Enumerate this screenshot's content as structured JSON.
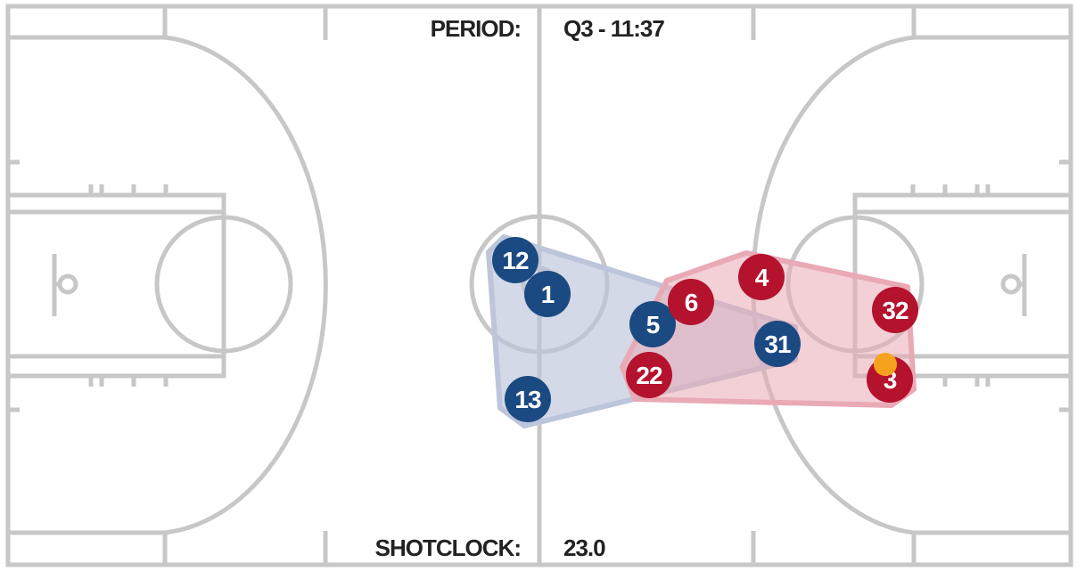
{
  "readouts": {
    "period_label": "PERIOD:",
    "period_value": "Q3 - 11:37",
    "shotclock_label": "SHOTCLOCK:",
    "shotclock_value": "23.0"
  },
  "colors": {
    "court_lines": "#c7c7c7",
    "home_team": "#1b4a82",
    "away_team": "#b5122e",
    "home_hull": "#bcc5da",
    "away_hull": "#e9a9b5",
    "ball": "#f7a21c"
  },
  "teams": {
    "blue": {
      "color": "#1b4a82",
      "players": [
        "12",
        "1",
        "5",
        "31",
        "13"
      ]
    },
    "red": {
      "color": "#b5122e",
      "players": [
        "4",
        "6",
        "32",
        "22",
        "3"
      ]
    }
  },
  "ball": {
    "holder": "3",
    "color": "#f7a21c"
  }
}
